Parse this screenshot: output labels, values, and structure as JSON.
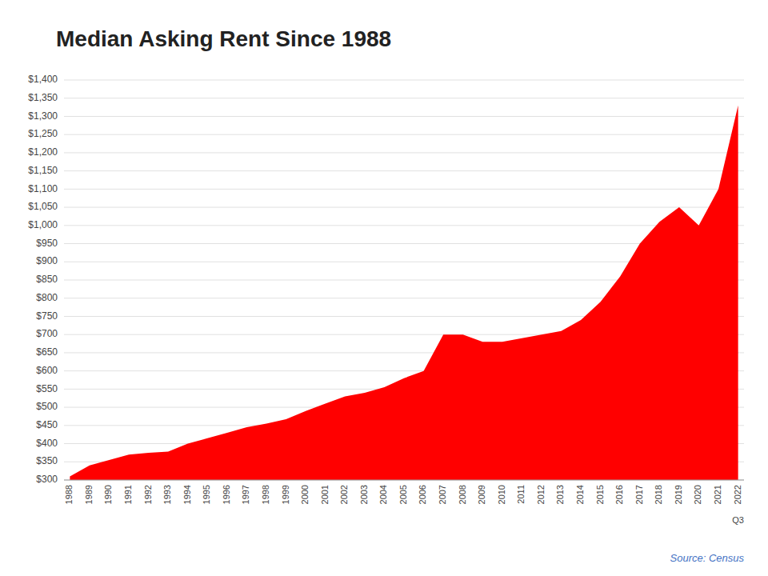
{
  "chart_data": {
    "type": "area",
    "title": "Median Asking Rent Since 1988",
    "x": [
      1988,
      1989,
      1990,
      1991,
      1992,
      1993,
      1994,
      1995,
      1996,
      1997,
      1998,
      1999,
      2000,
      2001,
      2002,
      2003,
      2004,
      2005,
      2006,
      2007,
      2008,
      2009,
      2010,
      2011,
      2012,
      2013,
      2014,
      2015,
      2016,
      2017,
      2018,
      2019,
      2020,
      2021,
      2022
    ],
    "values": [
      310,
      340,
      355,
      370,
      375,
      378,
      400,
      415,
      430,
      445,
      455,
      467,
      490,
      510,
      530,
      540,
      555,
      580,
      600,
      700,
      700,
      680,
      680,
      690,
      700,
      710,
      740,
      790,
      860,
      950,
      1010,
      1050,
      1000,
      1100,
      1330
    ],
    "color": "#ff0000",
    "xlim": [
      1987.7,
      2022.3
    ],
    "xticks": [
      1988,
      1989,
      1990,
      1991,
      1992,
      1993,
      1994,
      1995,
      1996,
      1997,
      1998,
      1999,
      2000,
      2001,
      2002,
      2003,
      2004,
      2005,
      2006,
      2007,
      2008,
      2009,
      2010,
      2011,
      2012,
      2013,
      2014,
      2015,
      2016,
      2017,
      2018,
      2019,
      2020,
      2021,
      2022
    ],
    "ylim": [
      300,
      1400
    ],
    "yticks": [
      {
        "value": 300,
        "label": "$300"
      },
      {
        "value": 350,
        "label": "$350"
      },
      {
        "value": 400,
        "label": "$400"
      },
      {
        "value": 450,
        "label": "$450"
      },
      {
        "value": 500,
        "label": "$500"
      },
      {
        "value": 550,
        "label": "$550"
      },
      {
        "value": 600,
        "label": "$600"
      },
      {
        "value": 650,
        "label": "$650"
      },
      {
        "value": 700,
        "label": "$700"
      },
      {
        "value": 750,
        "label": "$750"
      },
      {
        "value": 800,
        "label": "$800"
      },
      {
        "value": 850,
        "label": "$850"
      },
      {
        "value": 900,
        "label": "$900"
      },
      {
        "value": 950,
        "label": "$950"
      },
      {
        "value": 1000,
        "label": "$1,000"
      },
      {
        "value": 1050,
        "label": "$1,050"
      },
      {
        "value": 1100,
        "label": "$1,100"
      },
      {
        "value": 1150,
        "label": "$1,150"
      },
      {
        "value": 1200,
        "label": "$1,200"
      },
      {
        "value": 1250,
        "label": "$1,250"
      },
      {
        "value": 1300,
        "label": "$1,300"
      },
      {
        "value": 1350,
        "label": "$1,350"
      },
      {
        "value": 1400,
        "label": "$1,400"
      }
    ],
    "grid": true,
    "annotations": [
      {
        "text": "Q3",
        "x": 2022
      },
      {
        "text": "Source: Census"
      }
    ]
  }
}
